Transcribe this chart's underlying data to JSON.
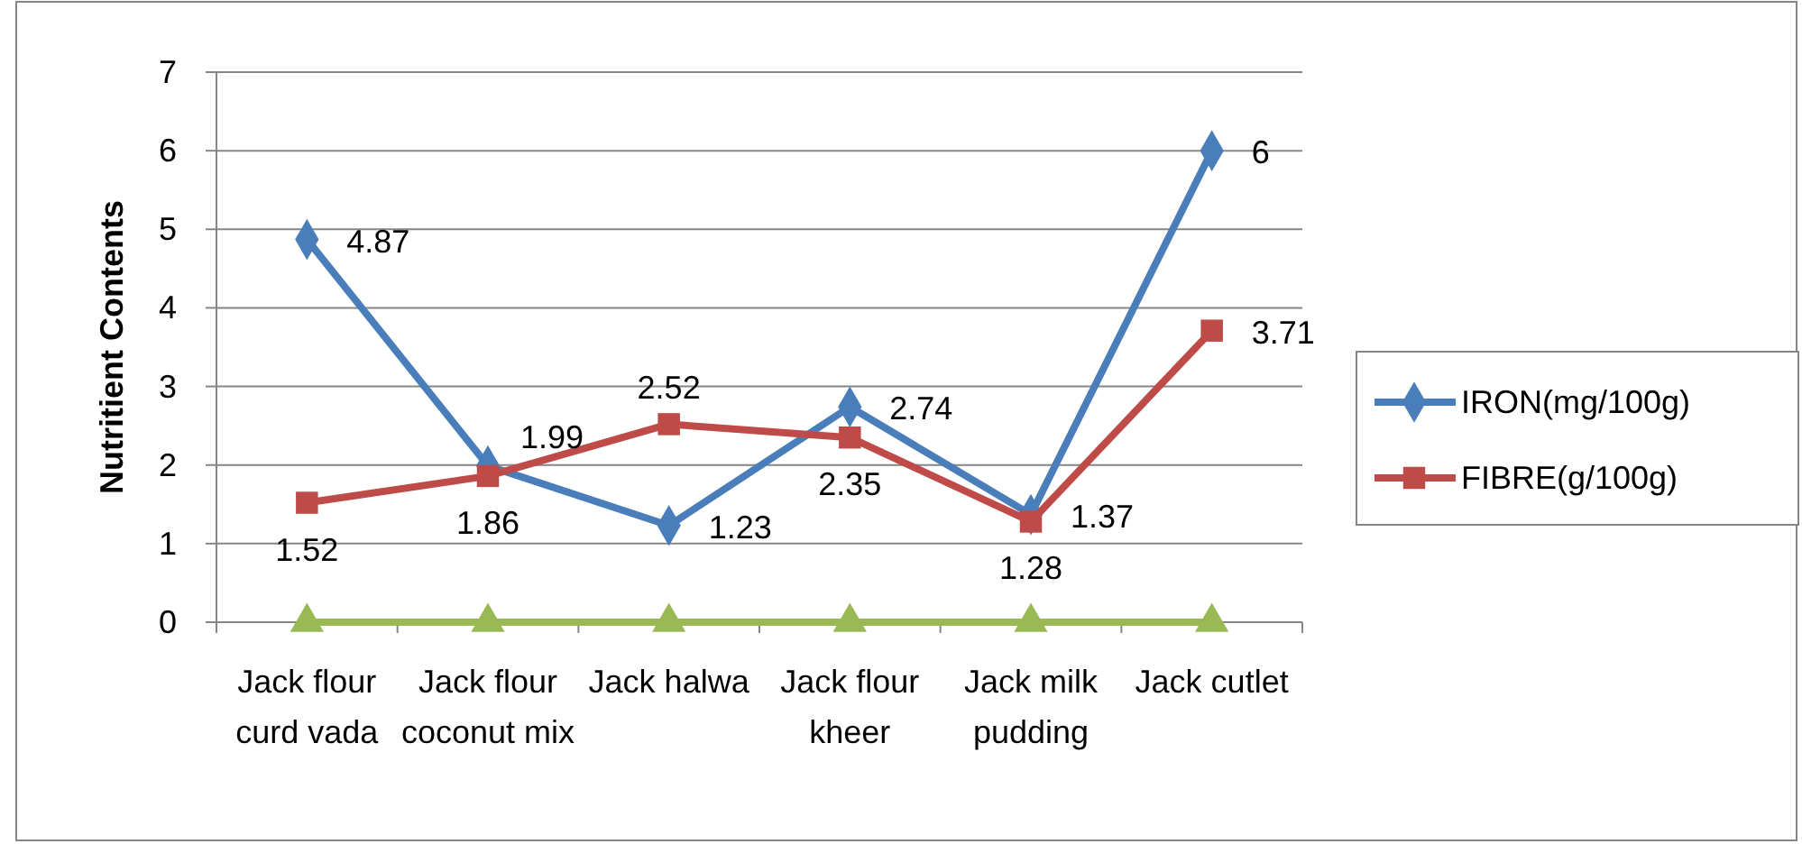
{
  "chart_data": {
    "type": "line",
    "ylabel": "Nutritient Contents",
    "categories": [
      "Jack flour curd vada",
      "Jack flour coconut mix",
      "Jack halwa",
      "Jack flour kheer",
      "Jack milk pudding",
      "Jack cutlet"
    ],
    "series": [
      {
        "name": "IRON(mg/100g)",
        "color": "#4a7ebb",
        "marker": "diamond",
        "values": [
          4.87,
          1.99,
          1.23,
          2.74,
          1.37,
          6
        ],
        "value_labels": [
          "4.87",
          "1.99",
          "1.23",
          "2.74",
          "1.37",
          "6"
        ]
      },
      {
        "name": "FIBRE(g/100g)",
        "color": "#be4b48",
        "marker": "square",
        "values": [
          1.52,
          1.86,
          2.52,
          2.35,
          1.28,
          3.71
        ],
        "value_labels": [
          "1.52",
          "1.86",
          "2.52",
          "2.35",
          "1.28",
          "3.71"
        ]
      },
      {
        "color": "#98b954",
        "marker": "triangle",
        "values": [
          0,
          0,
          0,
          0,
          0,
          0
        ]
      }
    ],
    "ylim": [
      0,
      7
    ],
    "yticks": [
      0,
      1,
      2,
      3,
      4,
      5,
      6,
      7
    ],
    "grid": "y",
    "legend": "right"
  }
}
